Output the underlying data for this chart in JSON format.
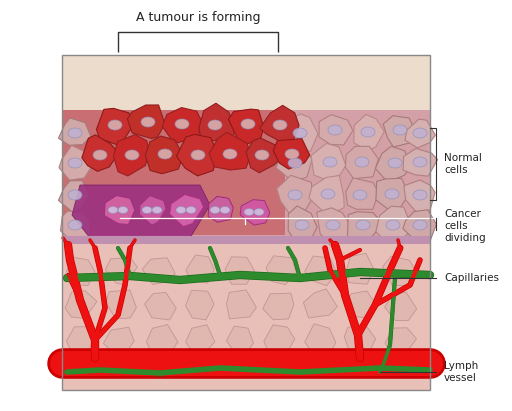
{
  "title": "A tumour is forming",
  "fig_bg": "#ffffff",
  "labels": {
    "normal_cells": "Normal\ncells",
    "cancer_cells": "Cancer\ncells\ndividing",
    "capillaries": "Capillaries",
    "lymph_vessel": "Lymph\nvessel"
  },
  "blood_vessel_color": "#dd0000",
  "lymph_vessel_color": "#2d8a2d",
  "font_size_title": 9,
  "font_size_label": 7.5
}
